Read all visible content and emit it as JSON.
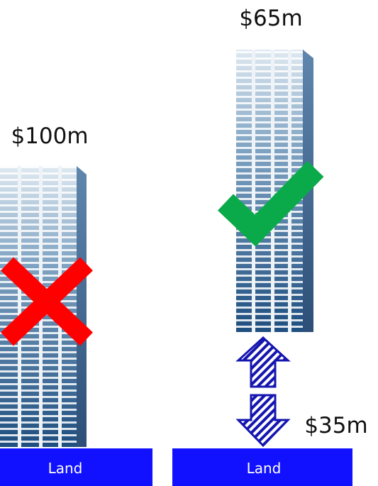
{
  "buildings": [
    {
      "price": "$100m",
      "land": "Land"
    },
    {
      "price": "$65m",
      "land": "Land"
    }
  ],
  "difference": "$35m"
}
